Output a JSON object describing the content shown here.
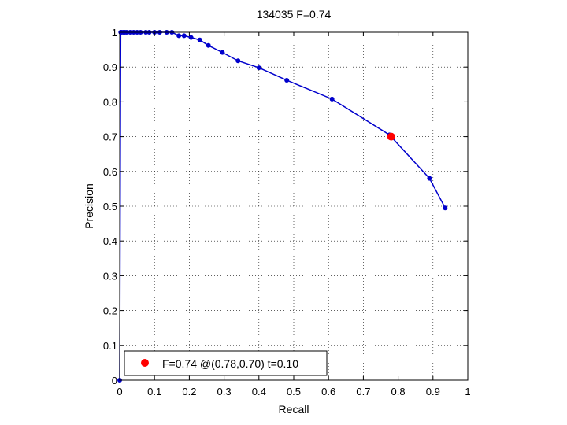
{
  "chart_data": {
    "type": "line",
    "title": "134035 F=0.74",
    "xlabel": "Recall",
    "ylabel": "Precision",
    "xlim": [
      0,
      1
    ],
    "ylim": [
      0,
      1
    ],
    "xticks": [
      0,
      0.1,
      0.2,
      0.3,
      0.4,
      0.5,
      0.6,
      0.7,
      0.8,
      0.9,
      1
    ],
    "yticks": [
      0,
      0.1,
      0.2,
      0.3,
      0.4,
      0.5,
      0.6,
      0.7,
      0.8,
      0.9,
      1
    ],
    "xtick_labels": [
      "0",
      "0.1",
      "0.2",
      "0.3",
      "0.4",
      "0.5",
      "0.6",
      "0.7",
      "0.8",
      "0.9",
      "1"
    ],
    "ytick_labels": [
      "0",
      "0.1",
      "0.2",
      "0.3",
      "0.4",
      "0.5",
      "0.6",
      "0.7",
      "0.8",
      "0.9",
      "1"
    ],
    "grid": true,
    "legend_position": "bottom-left",
    "series": [
      {
        "color": "#0000cc",
        "x": [
          0,
          0.003,
          0.005,
          0.01,
          0.015,
          0.02,
          0.03,
          0.04,
          0.05,
          0.06,
          0.075,
          0.085,
          0.1,
          0.115,
          0.135,
          0.15,
          0.17,
          0.185,
          0.205,
          0.23,
          0.255,
          0.295,
          0.34,
          0.4,
          0.48,
          0.61,
          0.775,
          0.89,
          0.935
        ],
        "y": [
          0,
          1,
          1,
          1,
          1,
          1,
          1,
          1,
          1,
          1,
          1,
          1,
          1,
          1,
          1,
          1,
          0.99,
          0.99,
          0.985,
          0.978,
          0.962,
          0.942,
          0.918,
          0.898,
          0.862,
          0.808,
          0.705,
          0.58,
          0.495
        ]
      }
    ],
    "highlight_point": {
      "x": 0.78,
      "y": 0.7,
      "color": "#ff0000"
    },
    "legend": {
      "label": "F=0.74 @(0.78,0.70) t=0.10",
      "marker_color": "#ff0000"
    }
  }
}
